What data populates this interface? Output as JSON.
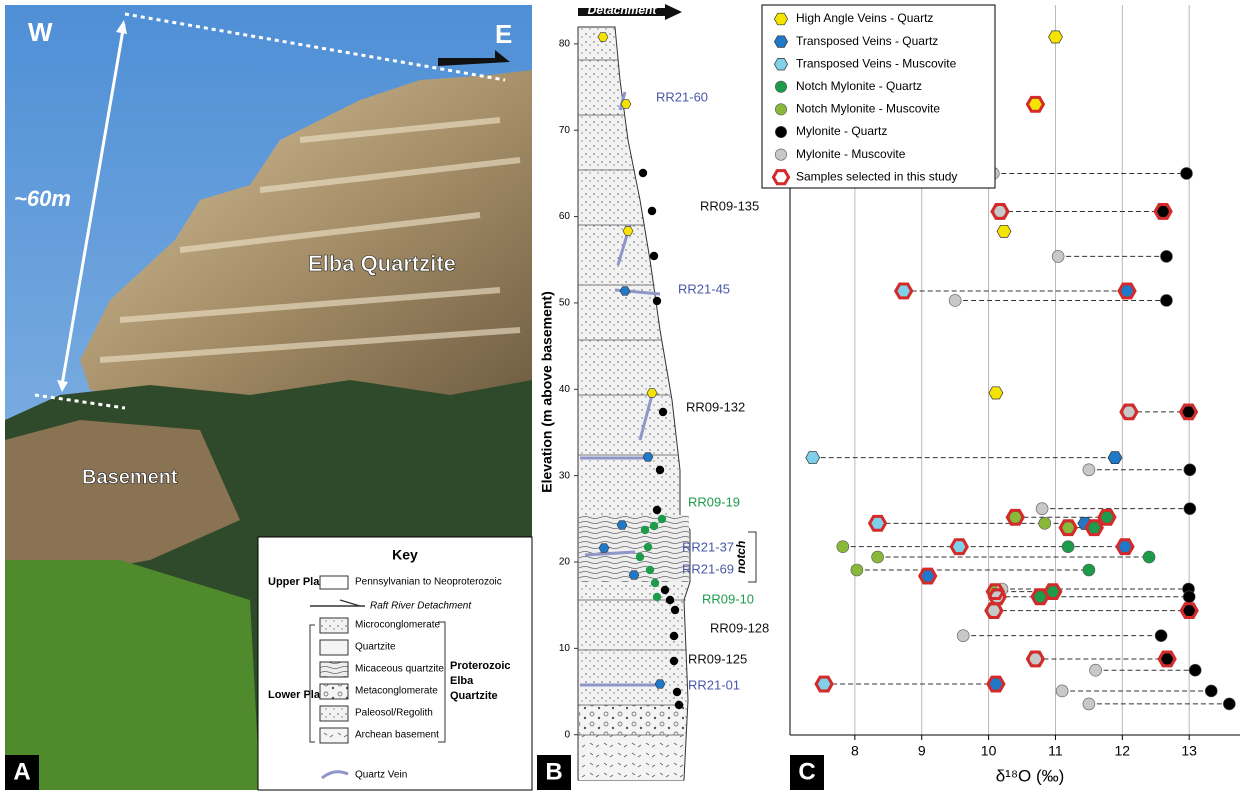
{
  "panels": [
    "A",
    "B",
    "C"
  ],
  "photo": {
    "west": "W",
    "east": "E",
    "height": "~60m",
    "unit_upper": "Elba Quartzite",
    "unit_lower": "Basement"
  },
  "key": {
    "title": "Key",
    "upper_plate": "Upper Plate",
    "lower_plate": "Lower Plate",
    "items": [
      "Pennsylvanian to Neoproterozoic",
      "Raft River Detachment",
      "Microconglomerate",
      "Quartzite",
      "Micaceous quartzite",
      "Metaconglomerate",
      "Paleosol/Regolith",
      "Archean basement",
      "Quartz Vein"
    ],
    "group": [
      "Proterozoic",
      "Elba",
      "Quartzite"
    ]
  },
  "column": {
    "detachment": "Detachment",
    "ylabel": "Elevation (m above basement)",
    "notch": "notch",
    "ylim": [
      -6.4,
      84.5
    ],
    "yticks": [
      0,
      10,
      20,
      30,
      40,
      50,
      60,
      70,
      80
    ],
    "samples": [
      "RR21-60",
      "RR09-135",
      "RR21-45",
      "RR09-132",
      "RR09-19",
      "RR21-37",
      "RR21-69",
      "RR09-10",
      "RR09-128",
      "RR09-125",
      "RR21-01"
    ]
  },
  "chart_data": {
    "type": "scatter",
    "xlabel": "δ¹⁸O (‰)",
    "xlim": [
      7.03,
      13.76
    ],
    "xticks": [
      8,
      9,
      10,
      11,
      12,
      13
    ],
    "ylim": [
      0,
      84.5
    ],
    "grid": true,
    "legend": "top-left",
    "series": [
      {
        "name": "High Angle Veins - Quartz",
        "color": "#f5e400",
        "marker": "hexagon",
        "x": [
          11.0,
          10.7,
          10.23,
          10.11
        ],
        "y": [
          80.8,
          73.0,
          58.3,
          39.6
        ]
      },
      {
        "name": "Transposed Veins - Quartz",
        "color": "#1f78c8",
        "marker": "hexagon",
        "x": [
          12.07,
          11.89,
          11.44,
          12.04,
          9.09,
          10.11
        ],
        "y": [
          51.4,
          32.1,
          24.5,
          21.8,
          18.4,
          5.9
        ]
      },
      {
        "name": "Transposed Veins - Muscovite",
        "color": "#7fd0e8",
        "marker": "hexagon",
        "x": [
          8.73,
          7.37,
          8.34,
          9.56,
          7.54
        ],
        "y": [
          51.4,
          32.1,
          24.5,
          21.8,
          5.9
        ]
      },
      {
        "name": "Notch Mylonite - Quartz",
        "color": "#1d9a4a",
        "marker": "circle",
        "x": [
          11.77,
          11.58,
          11.19,
          12.4,
          11.5,
          10.96,
          10.77
        ],
        "y": [
          25.2,
          24.0,
          21.8,
          20.6,
          19.1,
          16.6,
          16.0
        ]
      },
      {
        "name": "Notch Mylonite - Muscovite",
        "color": "#8ab83a",
        "marker": "circle",
        "x": [
          10.4,
          10.84,
          11.19,
          7.82,
          8.34,
          8.03,
          10.1
        ],
        "y": [
          25.2,
          24.5,
          24.0,
          21.8,
          20.6,
          19.1,
          16.6
        ]
      },
      {
        "name": "Mylonite - Quartz",
        "color": "#000000",
        "marker": "circle",
        "x": [
          12.96,
          12.61,
          12.66,
          12.66,
          12.99,
          13.01,
          13.01,
          12.99,
          13.0,
          13.0,
          12.58,
          12.67,
          13.09,
          13.33,
          13.6
        ],
        "y": [
          65.0,
          60.6,
          55.4,
          50.3,
          37.4,
          30.7,
          26.2,
          16.9,
          16.0,
          14.4,
          11.5,
          8.8,
          7.5,
          5.1,
          3.6
        ]
      },
      {
        "name": "Mylonite - Muscovite",
        "color": "#c8c8c8",
        "marker": "circle",
        "x": [
          10.07,
          10.17,
          11.04,
          9.5,
          12.1,
          11.5,
          10.8,
          10.2,
          10.13,
          10.08,
          9.62,
          10.7,
          11.6,
          11.1,
          11.5
        ],
        "y": [
          65.0,
          60.6,
          55.4,
          50.3,
          37.4,
          30.7,
          26.2,
          16.9,
          16.0,
          14.4,
          11.5,
          8.8,
          7.5,
          5.1,
          3.6
        ]
      },
      {
        "name": "Samples selected in this study",
        "color": "#d42a2a",
        "marker": "ring",
        "x": [
          10.7,
          10.17,
          12.61,
          8.73,
          12.07,
          12.1,
          12.99,
          10.4,
          11.77,
          8.34,
          11.19,
          11.58,
          9.56,
          12.04,
          9.09,
          10.1,
          10.96,
          10.77,
          10.13,
          10.08,
          13.0,
          10.7,
          12.67,
          7.54,
          10.11
        ],
        "y": [
          73.0,
          60.6,
          60.6,
          51.4,
          51.4,
          37.4,
          37.4,
          25.2,
          25.2,
          24.5,
          24.0,
          24.0,
          21.8,
          21.8,
          18.4,
          16.6,
          16.6,
          16.0,
          16.0,
          14.4,
          14.4,
          8.8,
          8.8,
          5.9,
          5.9
        ]
      }
    ]
  }
}
